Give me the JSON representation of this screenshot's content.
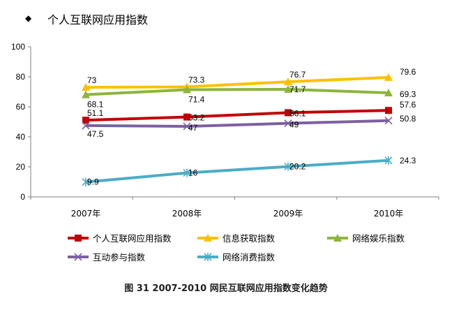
{
  "header": {
    "bullet": "◆",
    "title": "个人互联网应用指数"
  },
  "caption": "图 31 2007-2010 网民互联网应用指数变化趋势",
  "chart_data": {
    "type": "line",
    "categories": [
      "2007年",
      "2008年",
      "2009年",
      "2010年"
    ],
    "ylim": [
      0,
      100
    ],
    "yticks": [
      0,
      20,
      40,
      60,
      80,
      100
    ],
    "grid": false,
    "legend_position": "bottom",
    "series": [
      {
        "name": "个人互联网应用指数",
        "values": [
          51.1,
          53.2,
          56.1,
          57.6
        ],
        "color": "#c00000",
        "marker": "square"
      },
      {
        "name": "信息获取指数",
        "values": [
          73,
          73.3,
          76.7,
          79.6
        ],
        "color": "#ffc000",
        "marker": "triangle"
      },
      {
        "name": "网络娱乐指数",
        "values": [
          68.1,
          71.4,
          71.7,
          69.3
        ],
        "color": "#8db53c",
        "marker": "triangle"
      },
      {
        "name": "互动参与指数",
        "values": [
          47.5,
          47,
          49,
          50.8
        ],
        "color": "#7d60a0",
        "marker": "x"
      },
      {
        "name": "网络消费指数",
        "values": [
          9.9,
          16,
          20.2,
          24.3
        ],
        "color": "#4bacc6",
        "marker": "star"
      }
    ],
    "data_labels": [
      [
        "51.1",
        "53.2",
        "56.1",
        "57.6"
      ],
      [
        "73",
        "73.3",
        "76.7",
        "79.6"
      ],
      [
        "68.1",
        "71.4",
        "71.7",
        "69.3"
      ],
      [
        "47.5",
        "47",
        "49",
        "50.8"
      ],
      [
        "9.9",
        "16",
        "20.2",
        "24.3"
      ]
    ]
  }
}
